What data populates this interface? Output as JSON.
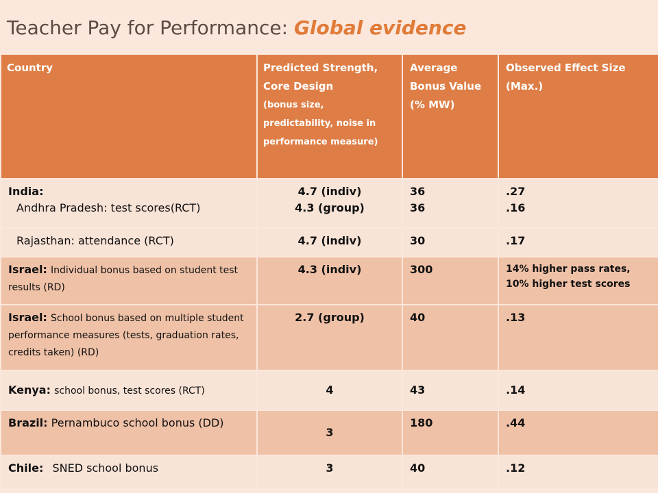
{
  "title": {
    "main": "Teacher Pay for Performance:",
    "accent": "Global evidence"
  },
  "table": {
    "headers": {
      "country": "Country",
      "strength": "Predicted Strength, Core Design",
      "strength_sub": "(bonus size, predictability,  noise in performance measure)",
      "bonus": "Average Bonus Value (% MW)",
      "effect": "Observed Effect Size (Max.)"
    },
    "rows": [
      {
        "country_bold": "India:",
        "country_text": "Andhra Pradesh: test scores(RCT)",
        "strength_1": "4.7 (indiv)",
        "strength_2": "4.3 (group)",
        "bonus_1": "36",
        "bonus_2": "36",
        "effect_1": ".27",
        "effect_2": ".16"
      },
      {
        "country_text": "Rajasthan:  attendance (RCT)",
        "strength": "4.7 (indiv)",
        "bonus": "30",
        "effect": ".17"
      },
      {
        "country_bold": "Israel:",
        "country_text": "Individual bonus based on student test results (RD)",
        "strength": "4.3 (indiv)",
        "bonus": "300",
        "effect_1": "14% higher pass rates,",
        "effect_2": "10% higher test scores"
      },
      {
        "country_bold": "Israel:",
        "country_text": "School bonus based on multiple student performance measures (tests, graduation rates, credits taken) (RD)",
        "strength": "2.7 (group)",
        "bonus": "40",
        "effect": ".13"
      },
      {
        "country_bold": "Kenya:",
        "country_text": "school bonus, test scores (RCT)",
        "strength": "4",
        "bonus": "43",
        "effect": ".14"
      },
      {
        "country_bold": "Brazil:",
        "country_text": "Pernambuco school bonus (DD)",
        "strength": "3",
        "bonus": "180",
        "effect": ".44"
      },
      {
        "country_bold": "Chile:",
        "country_text": "SNED school bonus",
        "strength": "3",
        "bonus": "40",
        "effect": ".12"
      }
    ]
  }
}
